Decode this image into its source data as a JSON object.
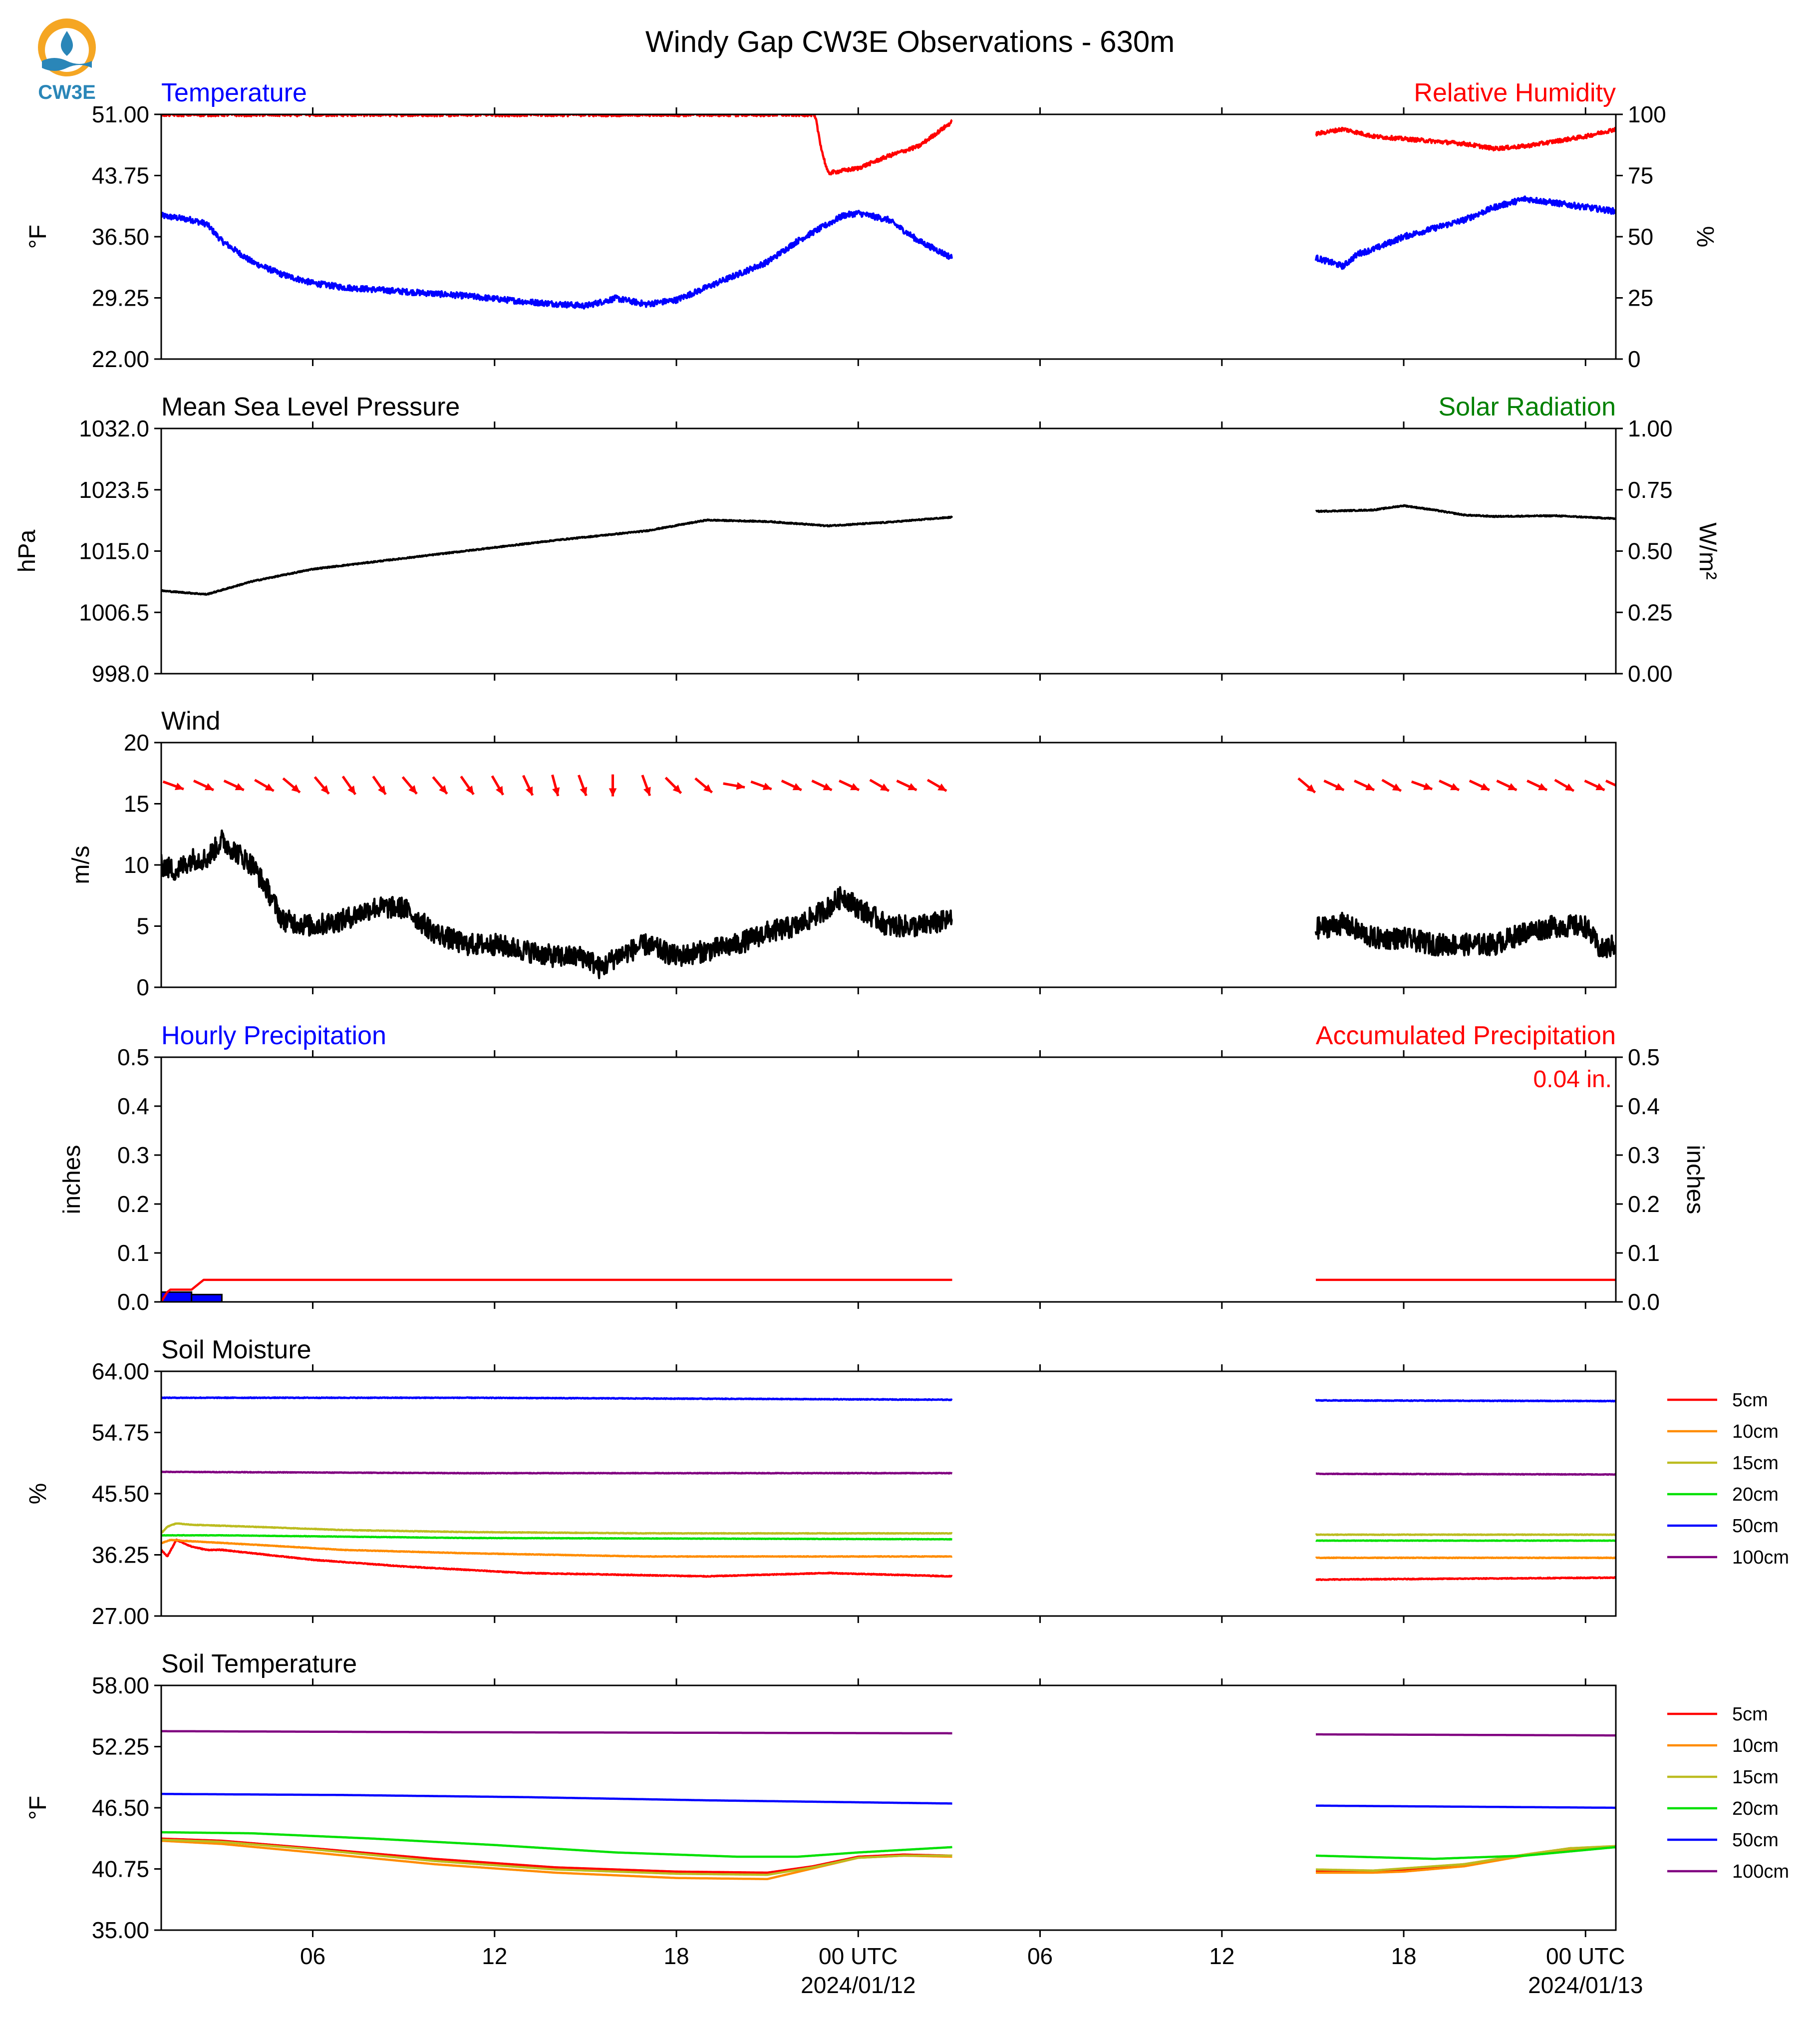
{
  "title": "Windy Gap CW3E Observations - 630m",
  "logo_text": "CW3E",
  "colors": {
    "red": "#ff0000",
    "blue": "#0000ff",
    "green": "#008000",
    "black": "#000000",
    "orange": "#ff8c00",
    "olive": "#bcbc20",
    "lime": "#00e000",
    "purple": "#800080"
  },
  "x_axis": {
    "range_hours": [
      0,
      48
    ],
    "gap_hours": [
      26.1,
      38.1
    ],
    "ticks": [
      {
        "h": 5,
        "label": "06"
      },
      {
        "h": 11,
        "label": "12"
      },
      {
        "h": 17,
        "label": "18"
      },
      {
        "h": 23,
        "label": "00 UTC",
        "sub": "2024/01/12"
      },
      {
        "h": 29,
        "label": "06"
      },
      {
        "h": 35,
        "label": "12"
      },
      {
        "h": 41,
        "label": "18"
      },
      {
        "h": 47,
        "label": "00 UTC",
        "sub": "2024/01/13"
      }
    ]
  },
  "chart_data": [
    {
      "type": "line",
      "left_title": "Temperature",
      "right_title": "Relative Humidity",
      "ylabel": "°F",
      "ylabel2": "%",
      "ylim": [
        22,
        51
      ],
      "ylim2": [
        0,
        100
      ],
      "yticks": [
        "51.00",
        "43.75",
        "36.50",
        "29.25",
        "22.00"
      ],
      "yticks2": [
        "100",
        "75",
        "50",
        "25",
        "0"
      ],
      "series": [
        {
          "axis": "left",
          "color": "blue",
          "noise": 0.35,
          "x": [
            0,
            1,
            1.5,
            2,
            3,
            4,
            5,
            6,
            8,
            10,
            12,
            14,
            15,
            16,
            17,
            18,
            19,
            20,
            21,
            22,
            22.5,
            23,
            24,
            25,
            26.1,
            38.1,
            39,
            39.5,
            40,
            41,
            42,
            43,
            44,
            45,
            46,
            47,
            48
          ],
          "y": [
            39,
            38.5,
            38,
            36,
            33.5,
            32,
            31,
            30.5,
            30,
            29.5,
            28.8,
            28.3,
            29.2,
            28.5,
            29,
            30.5,
            32,
            33.5,
            36,
            38,
            39,
            39.3,
            38.5,
            36,
            34,
            34,
            33,
            34.5,
            35,
            36.5,
            37.5,
            38.5,
            40,
            41,
            40.5,
            40,
            39.5
          ]
        },
        {
          "axis": "right",
          "color": "red",
          "noise": 0.8,
          "x": [
            0,
            21.5,
            21.6,
            21.8,
            22,
            23,
            24,
            25,
            26.1,
            38.1,
            39,
            40,
            42,
            43,
            44,
            45,
            46,
            47,
            48
          ],
          "y": [
            100,
            100,
            98,
            85,
            76,
            78,
            83,
            87,
            97,
            92,
            94,
            91,
            89,
            88,
            86,
            87,
            89,
            91,
            94
          ]
        }
      ]
    },
    {
      "type": "line",
      "left_title": "Mean Sea Level Pressure",
      "right_title": "Solar Radiation",
      "ylabel": "hPa",
      "ylabel2": "W/m²",
      "ylim": [
        998,
        1032
      ],
      "ylim2": [
        0,
        1
      ],
      "yticks": [
        "1032.0",
        "1023.5",
        "1015.0",
        "1006.5",
        "998.0"
      ],
      "yticks2": [
        "1.00",
        "0.75",
        "0.50",
        "0.25",
        "0.00"
      ],
      "series": [
        {
          "axis": "left",
          "color": "black",
          "noise": 0.08,
          "x": [
            0,
            1.5,
            3,
            5,
            7,
            10,
            13,
            16,
            18,
            20,
            22,
            24,
            26.1,
            38.1,
            40,
            41,
            42,
            43,
            44,
            46,
            48
          ],
          "y": [
            1009.5,
            1009,
            1010.8,
            1012.5,
            1013.5,
            1015,
            1016.5,
            1017.8,
            1019.3,
            1019.1,
            1018.5,
            1019,
            1019.7,
            1020.5,
            1020.7,
            1021.3,
            1020.7,
            1020,
            1019.8,
            1019.9,
            1019.5
          ]
        }
      ]
    },
    {
      "type": "line",
      "left_title": "Wind",
      "ylabel": "m/s",
      "ylim": [
        0,
        20
      ],
      "yticks": [
        "20",
        "15",
        "10",
        "5",
        "0"
      ],
      "barbs_y": 16.5,
      "barbs": [
        {
          "h": 0.4,
          "dir": 20
        },
        {
          "h": 1.4,
          "dir": 25
        },
        {
          "h": 2.4,
          "dir": 25
        },
        {
          "h": 3.4,
          "dir": 30
        },
        {
          "h": 4.3,
          "dir": 40
        },
        {
          "h": 5.3,
          "dir": 50
        },
        {
          "h": 6.2,
          "dir": 55
        },
        {
          "h": 7.2,
          "dir": 55
        },
        {
          "h": 8.2,
          "dir": 50
        },
        {
          "h": 9.2,
          "dir": 50
        },
        {
          "h": 10.1,
          "dir": 55
        },
        {
          "h": 11.1,
          "dir": 60
        },
        {
          "h": 12.1,
          "dir": 65
        },
        {
          "h": 13,
          "dir": 75
        },
        {
          "h": 13.9,
          "dir": 70
        },
        {
          "h": 14.9,
          "dir": 90
        },
        {
          "h": 16,
          "dir": 70
        },
        {
          "h": 16.9,
          "dir": 45
        },
        {
          "h": 17.9,
          "dir": 40
        },
        {
          "h": 18.9,
          "dir": 10
        },
        {
          "h": 19.8,
          "dir": 20
        },
        {
          "h": 20.8,
          "dir": 25
        },
        {
          "h": 21.8,
          "dir": 25
        },
        {
          "h": 22.7,
          "dir": 25
        },
        {
          "h": 23.7,
          "dir": 30
        },
        {
          "h": 24.6,
          "dir": 25
        },
        {
          "h": 25.6,
          "dir": 30
        },
        {
          "h": 37.8,
          "dir": 40
        },
        {
          "h": 38.7,
          "dir": 25
        },
        {
          "h": 39.7,
          "dir": 25
        },
        {
          "h": 40.6,
          "dir": 30
        },
        {
          "h": 41.6,
          "dir": 20
        },
        {
          "h": 42.5,
          "dir": 25
        },
        {
          "h": 43.5,
          "dir": 25
        },
        {
          "h": 44.4,
          "dir": 25
        },
        {
          "h": 45.4,
          "dir": 25
        },
        {
          "h": 46.3,
          "dir": 30
        },
        {
          "h": 47.3,
          "dir": 25
        },
        {
          "h": 48,
          "dir": 25
        }
      ],
      "series": [
        {
          "axis": "left",
          "color": "black",
          "noise": 0.9,
          "x": [
            0,
            0.5,
            1,
            1.5,
            2,
            3,
            3.5,
            4,
            5,
            6,
            7,
            8,
            9,
            10,
            11,
            12,
            13,
            14,
            14.5,
            15,
            16,
            17,
            18,
            19,
            20,
            21,
            22,
            22.5,
            23,
            24,
            25,
            26.1,
            38.1,
            39,
            40,
            41,
            42,
            43,
            44,
            45,
            46,
            47,
            47.5,
            48
          ],
          "y": [
            10,
            9.5,
            10.5,
            10.5,
            12,
            10,
            8,
            5.5,
            5,
            5.5,
            6.5,
            6.5,
            4.5,
            3.5,
            3.5,
            3,
            2.5,
            2.5,
            1.5,
            2.5,
            3.5,
            2.5,
            3,
            3.5,
            4.5,
            5,
            6.5,
            7.5,
            6.5,
            5,
            5,
            5.5,
            4.8,
            5.2,
            4,
            4,
            3.5,
            3.5,
            3.5,
            4.5,
            5,
            5,
            3,
            3.5
          ]
        }
      ]
    },
    {
      "type": "line",
      "left_title": "Hourly Precipitation",
      "right_title": "Accumulated Precipitation",
      "ylabel": "inches",
      "ylabel2": "inches",
      "ylim": [
        0,
        0.5
      ],
      "ylim2": [
        0,
        0.5
      ],
      "yticks": [
        "0.5",
        "0.4",
        "0.3",
        "0.2",
        "0.1",
        "0.0"
      ],
      "yticks2": [
        "0.5",
        "0.4",
        "0.3",
        "0.2",
        "0.1",
        "0.0"
      ],
      "annotation": "0.04 in.",
      "bars": [
        {
          "x0": 0,
          "x1": 1,
          "value": 0.02
        },
        {
          "x0": 1,
          "x1": 2,
          "value": 0.015
        }
      ],
      "series": [
        {
          "axis": "right",
          "color": "red",
          "step": true,
          "x": [
            0,
            0.2,
            0.3,
            1.0,
            1.3,
            1.4,
            26.1,
            38.1,
            48
          ],
          "y": [
            0.0,
            0.02,
            0.025,
            0.025,
            0.04,
            0.045,
            0.045,
            0.045,
            0.045
          ]
        }
      ]
    },
    {
      "type": "line",
      "left_title": "Soil Moisture",
      "ylabel": "%",
      "ylim": [
        27,
        64
      ],
      "yticks": [
        "64.00",
        "54.75",
        "45.50",
        "36.25",
        "27.00"
      ],
      "legend": [
        "5cm",
        "10cm",
        "15cm",
        "20cm",
        "50cm",
        "100cm"
      ],
      "series": [
        {
          "name": "5cm",
          "color": "red",
          "noise": 0.06,
          "x": [
            0,
            0.2,
            0.5,
            1,
            1.5,
            2,
            3,
            5,
            8,
            12,
            18,
            22,
            26.1,
            38.1,
            48
          ],
          "y": [
            37,
            36,
            38.5,
            37.5,
            37,
            37,
            36.5,
            35.5,
            34.5,
            33.5,
            33,
            33.5,
            33,
            32.5,
            32.8
          ]
        },
        {
          "name": "10cm",
          "color": "orange",
          "noise": 0.04,
          "x": [
            0,
            0.3,
            1,
            3,
            6,
            10,
            16,
            26.1,
            38.1,
            48
          ],
          "y": [
            38,
            38.5,
            38.3,
            37.8,
            37,
            36.5,
            36,
            36,
            35.8,
            35.8
          ]
        },
        {
          "name": "15cm",
          "color": "olive",
          "noise": 0.04,
          "x": [
            0,
            0.2,
            0.5,
            1,
            3,
            6,
            10,
            16,
            26.1,
            38.1,
            48
          ],
          "y": [
            39.5,
            40.5,
            41,
            40.8,
            40.5,
            40,
            39.7,
            39.5,
            39.5,
            39.3,
            39.3
          ]
        },
        {
          "name": "20cm",
          "color": "lime",
          "noise": 0.03,
          "x": [
            0,
            2,
            10,
            26.1,
            38.1,
            48
          ],
          "y": [
            39.2,
            39.2,
            38.8,
            38.6,
            38.4,
            38.4
          ]
        },
        {
          "name": "50cm",
          "color": "blue",
          "noise": 0.05,
          "x": [
            0,
            10,
            26.1,
            38.1,
            48
          ],
          "y": [
            60,
            60,
            59.7,
            59.6,
            59.5
          ]
        },
        {
          "name": "100cm",
          "color": "purple",
          "noise": 0.04,
          "x": [
            0,
            10,
            26.1,
            38.1,
            48
          ],
          "y": [
            48.8,
            48.6,
            48.6,
            48.5,
            48.4
          ]
        }
      ]
    },
    {
      "type": "line",
      "left_title": "Soil Temperature",
      "ylabel": "°F",
      "ylim": [
        35,
        58
      ],
      "yticks": [
        "58.00",
        "52.25",
        "46.50",
        "40.75",
        "35.00"
      ],
      "legend": [
        "5cm",
        "10cm",
        "15cm",
        "20cm",
        "50cm",
        "100cm"
      ],
      "series": [
        {
          "name": "5cm",
          "color": "red",
          "x": [
            0,
            2,
            5,
            9,
            13,
            17,
            20,
            21.5,
            23,
            24.5,
            26.1,
            38.1,
            40,
            41,
            43,
            45,
            46.5,
            48
          ],
          "y": [
            43.6,
            43.4,
            42.7,
            41.7,
            40.9,
            40.5,
            40.4,
            41,
            41.9,
            42.1,
            42.0,
            40.6,
            40.6,
            40.7,
            41.2,
            42.1,
            42.7,
            42.8
          ]
        },
        {
          "name": "10cm",
          "color": "orange",
          "x": [
            0,
            2,
            5,
            9,
            13,
            17,
            20,
            21.5,
            23,
            24.5,
            26.1,
            38.1,
            40,
            41,
            43,
            45,
            46.5,
            48
          ],
          "y": [
            43.4,
            43.1,
            42.3,
            41.2,
            40.4,
            39.9,
            39.8,
            40.8,
            41.8,
            42.0,
            41.9,
            40.4,
            40.4,
            40.5,
            41.0,
            42.0,
            42.6,
            42.8
          ]
        },
        {
          "name": "15cm",
          "color": "olive",
          "x": [
            0,
            2,
            5,
            9,
            13,
            17,
            20,
            21.5,
            23,
            24.5,
            26.1,
            38.1,
            40,
            41,
            43,
            45,
            46.5,
            48
          ],
          "y": [
            43.5,
            43.3,
            42.6,
            41.5,
            40.7,
            40.3,
            40.2,
            40.9,
            41.8,
            42.0,
            42.0,
            40.7,
            40.6,
            40.8,
            41.2,
            42.1,
            42.7,
            42.9
          ]
        },
        {
          "name": "20cm",
          "color": "lime",
          "x": [
            0,
            3,
            7,
            11,
            15,
            19,
            21,
            23,
            26.1,
            38.1,
            42,
            45,
            48
          ],
          "y": [
            44.2,
            44.1,
            43.6,
            43.0,
            42.3,
            41.9,
            41.9,
            42.3,
            42.8,
            42.0,
            41.7,
            42.0,
            42.8
          ]
        },
        {
          "name": "50cm",
          "color": "blue",
          "x": [
            0,
            6,
            12,
            18,
            26.1,
            38.1,
            48
          ],
          "y": [
            47.8,
            47.7,
            47.5,
            47.2,
            46.9,
            46.7,
            46.5
          ]
        },
        {
          "name": "100cm",
          "color": "purple",
          "x": [
            0,
            10,
            26.1,
            38.1,
            48
          ],
          "y": [
            53.7,
            53.6,
            53.5,
            53.4,
            53.3
          ]
        }
      ]
    }
  ]
}
